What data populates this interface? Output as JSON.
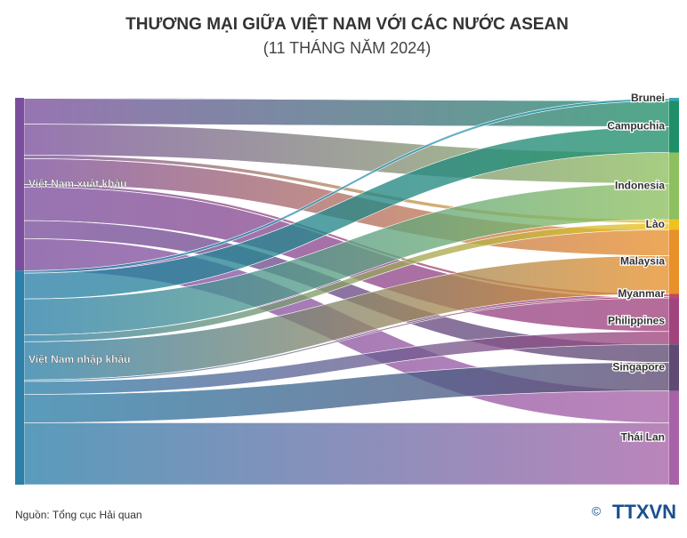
{
  "chart_data": {
    "type": "sankey",
    "title": "THƯƠNG MẠI GIỮA VIỆT NAM VỚI CÁC NƯỚC ASEAN",
    "subtitle": "(11 THÁNG NĂM 2024)",
    "categories": [
      "Brunei",
      "Campuchia",
      "Indonesia",
      "Lào",
      "Malaysia",
      "Myanmar",
      "Philippines",
      "Singapore",
      "Thái Lan"
    ],
    "category_colors": [
      "#3aa6b8",
      "#1f8f68",
      "#8dc05e",
      "#efc21e",
      "#e8902a",
      "#c2485e",
      "#a2437e",
      "#5e4a72",
      "#a762a8"
    ],
    "series": [
      {
        "name": "Việt Nam xuất khẩu",
        "color": "#7a4e9c",
        "values": [
          0.1,
          5.0,
          6.0,
          0.7,
          5.0,
          0.5,
          6.5,
          3.5,
          6.2
        ]
      },
      {
        "name": "Việt Nam nhập khẩu",
        "color": "#2b7fa8",
        "values": [
          0.5,
          5.0,
          7.0,
          1.3,
          7.4,
          0.3,
          2.5,
          5.5,
          12.0
        ]
      }
    ],
    "source": "Nguồn: Tổng cục Hải quan",
    "logo": {
      "copyright": "©",
      "name": "TTXVN"
    }
  }
}
